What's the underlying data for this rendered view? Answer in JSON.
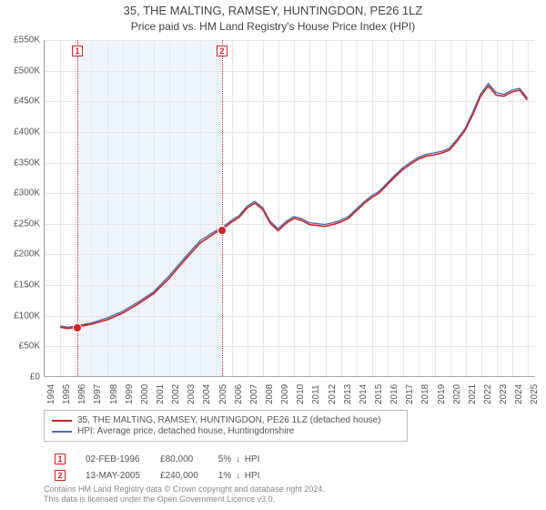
{
  "title_line1": "35, THE MALTING, RAMSEY, HUNTINGDON, PE26 1LZ",
  "title_line2": "Price paid vs. HM Land Registry's House Price Index (HPI)",
  "chart": {
    "type": "line",
    "background_color": "#ffffff",
    "grid_color": "#e6e6e6",
    "axis_color": "#aaaaaa",
    "shade_color": "#eef4fb",
    "shade_x_from": 1996.1,
    "shade_x_to": 2005.37,
    "xlim": [
      1994,
      2025.5
    ],
    "ylim": [
      0,
      550
    ],
    "ytick_step": 50,
    "y_prefix": "£",
    "y_suffix": "K",
    "x_ticks": [
      1994,
      1995,
      1996,
      1997,
      1998,
      1999,
      2000,
      2001,
      2002,
      2003,
      2004,
      2005,
      2006,
      2007,
      2008,
      2009,
      2010,
      2011,
      2012,
      2013,
      2014,
      2015,
      2016,
      2017,
      2018,
      2019,
      2020,
      2021,
      2022,
      2023,
      2024,
      2025
    ],
    "series": [
      {
        "label": "35, THE MALTING, RAMSEY, HUNTINGDON, PE26 1LZ (detached house)",
        "color": "#d62020",
        "line_width": 1.6,
        "points": [
          [
            1995,
            80
          ],
          [
            1995.5,
            78
          ],
          [
            1996,
            80
          ],
          [
            1997,
            85
          ],
          [
            1998,
            92
          ],
          [
            1999,
            103
          ],
          [
            2000,
            118
          ],
          [
            2001,
            135
          ],
          [
            2002,
            160
          ],
          [
            2003,
            190
          ],
          [
            2004,
            218
          ],
          [
            2005,
            235
          ],
          [
            2005.5,
            242
          ],
          [
            2006,
            252
          ],
          [
            2006.5,
            260
          ],
          [
            2007,
            275
          ],
          [
            2007.5,
            283
          ],
          [
            2008,
            273
          ],
          [
            2008.5,
            250
          ],
          [
            2009,
            238
          ],
          [
            2009.5,
            250
          ],
          [
            2010,
            258
          ],
          [
            2010.5,
            255
          ],
          [
            2011,
            248
          ],
          [
            2012,
            245
          ],
          [
            2012.5,
            248
          ],
          [
            2013,
            252
          ],
          [
            2013.5,
            258
          ],
          [
            2014,
            270
          ],
          [
            2014.5,
            282
          ],
          [
            2015,
            292
          ],
          [
            2015.5,
            300
          ],
          [
            2016,
            313
          ],
          [
            2016.5,
            326
          ],
          [
            2017,
            338
          ],
          [
            2017.5,
            347
          ],
          [
            2018,
            355
          ],
          [
            2018.5,
            360
          ],
          [
            2019,
            362
          ],
          [
            2019.5,
            365
          ],
          [
            2020,
            370
          ],
          [
            2020.5,
            385
          ],
          [
            2021,
            402
          ],
          [
            2021.5,
            428
          ],
          [
            2022,
            458
          ],
          [
            2022.5,
            475
          ],
          [
            2023,
            460
          ],
          [
            2023.5,
            458
          ],
          [
            2024,
            465
          ],
          [
            2024.5,
            468
          ],
          [
            2025,
            452
          ]
        ]
      },
      {
        "label": "HPI: Average price, detached house, Huntingdonshire",
        "color": "#4a6fb5",
        "line_width": 1.4,
        "points": [
          [
            1995,
            82
          ],
          [
            1995.5,
            80
          ],
          [
            1996,
            82
          ],
          [
            1997,
            87
          ],
          [
            1998,
            95
          ],
          [
            1999,
            106
          ],
          [
            2000,
            121
          ],
          [
            2001,
            138
          ],
          [
            2002,
            164
          ],
          [
            2003,
            194
          ],
          [
            2004,
            222
          ],
          [
            2005,
            238
          ],
          [
            2005.5,
            245
          ],
          [
            2006,
            255
          ],
          [
            2006.5,
            263
          ],
          [
            2007,
            278
          ],
          [
            2007.5,
            286
          ],
          [
            2008,
            276
          ],
          [
            2008.5,
            253
          ],
          [
            2009,
            241
          ],
          [
            2009.5,
            253
          ],
          [
            2010,
            261
          ],
          [
            2010.5,
            258
          ],
          [
            2011,
            251
          ],
          [
            2012,
            248
          ],
          [
            2012.5,
            251
          ],
          [
            2013,
            255
          ],
          [
            2013.5,
            261
          ],
          [
            2014,
            273
          ],
          [
            2014.5,
            285
          ],
          [
            2015,
            295
          ],
          [
            2015.5,
            303
          ],
          [
            2016,
            316
          ],
          [
            2016.5,
            329
          ],
          [
            2017,
            341
          ],
          [
            2017.5,
            350
          ],
          [
            2018,
            358
          ],
          [
            2018.5,
            363
          ],
          [
            2019,
            365
          ],
          [
            2019.5,
            368
          ],
          [
            2020,
            373
          ],
          [
            2020.5,
            388
          ],
          [
            2021,
            405
          ],
          [
            2021.5,
            432
          ],
          [
            2022,
            462
          ],
          [
            2022.5,
            479
          ],
          [
            2023,
            464
          ],
          [
            2023.5,
            461
          ],
          [
            2024,
            468
          ],
          [
            2024.5,
            471
          ],
          [
            2025,
            455
          ]
        ]
      }
    ],
    "markers": [
      {
        "n": "1",
        "x": 1996.1,
        "color": "#d62020",
        "date": "02-FEB-1996",
        "price": "£80,000",
        "pct": "5%",
        "dir": "↓",
        "vs": "HPI",
        "dot_y": 80
      },
      {
        "n": "2",
        "x": 2005.37,
        "color": "#d62020",
        "date": "13-MAY-2005",
        "price": "£240,000",
        "pct": "1%",
        "dir": "↓",
        "vs": "HPI",
        "dot_y": 240
      }
    ]
  },
  "footer_line1": "Contains HM Land Registry data © Crown copyright and database right 2024.",
  "footer_line2": "This data is licensed under the Open Government Licence v3.0.",
  "typography": {
    "title_fontsize": 13,
    "subtitle_fontsize": 12,
    "tick_fontsize": 10,
    "legend_fontsize": 10,
    "footer_fontsize": 9
  }
}
